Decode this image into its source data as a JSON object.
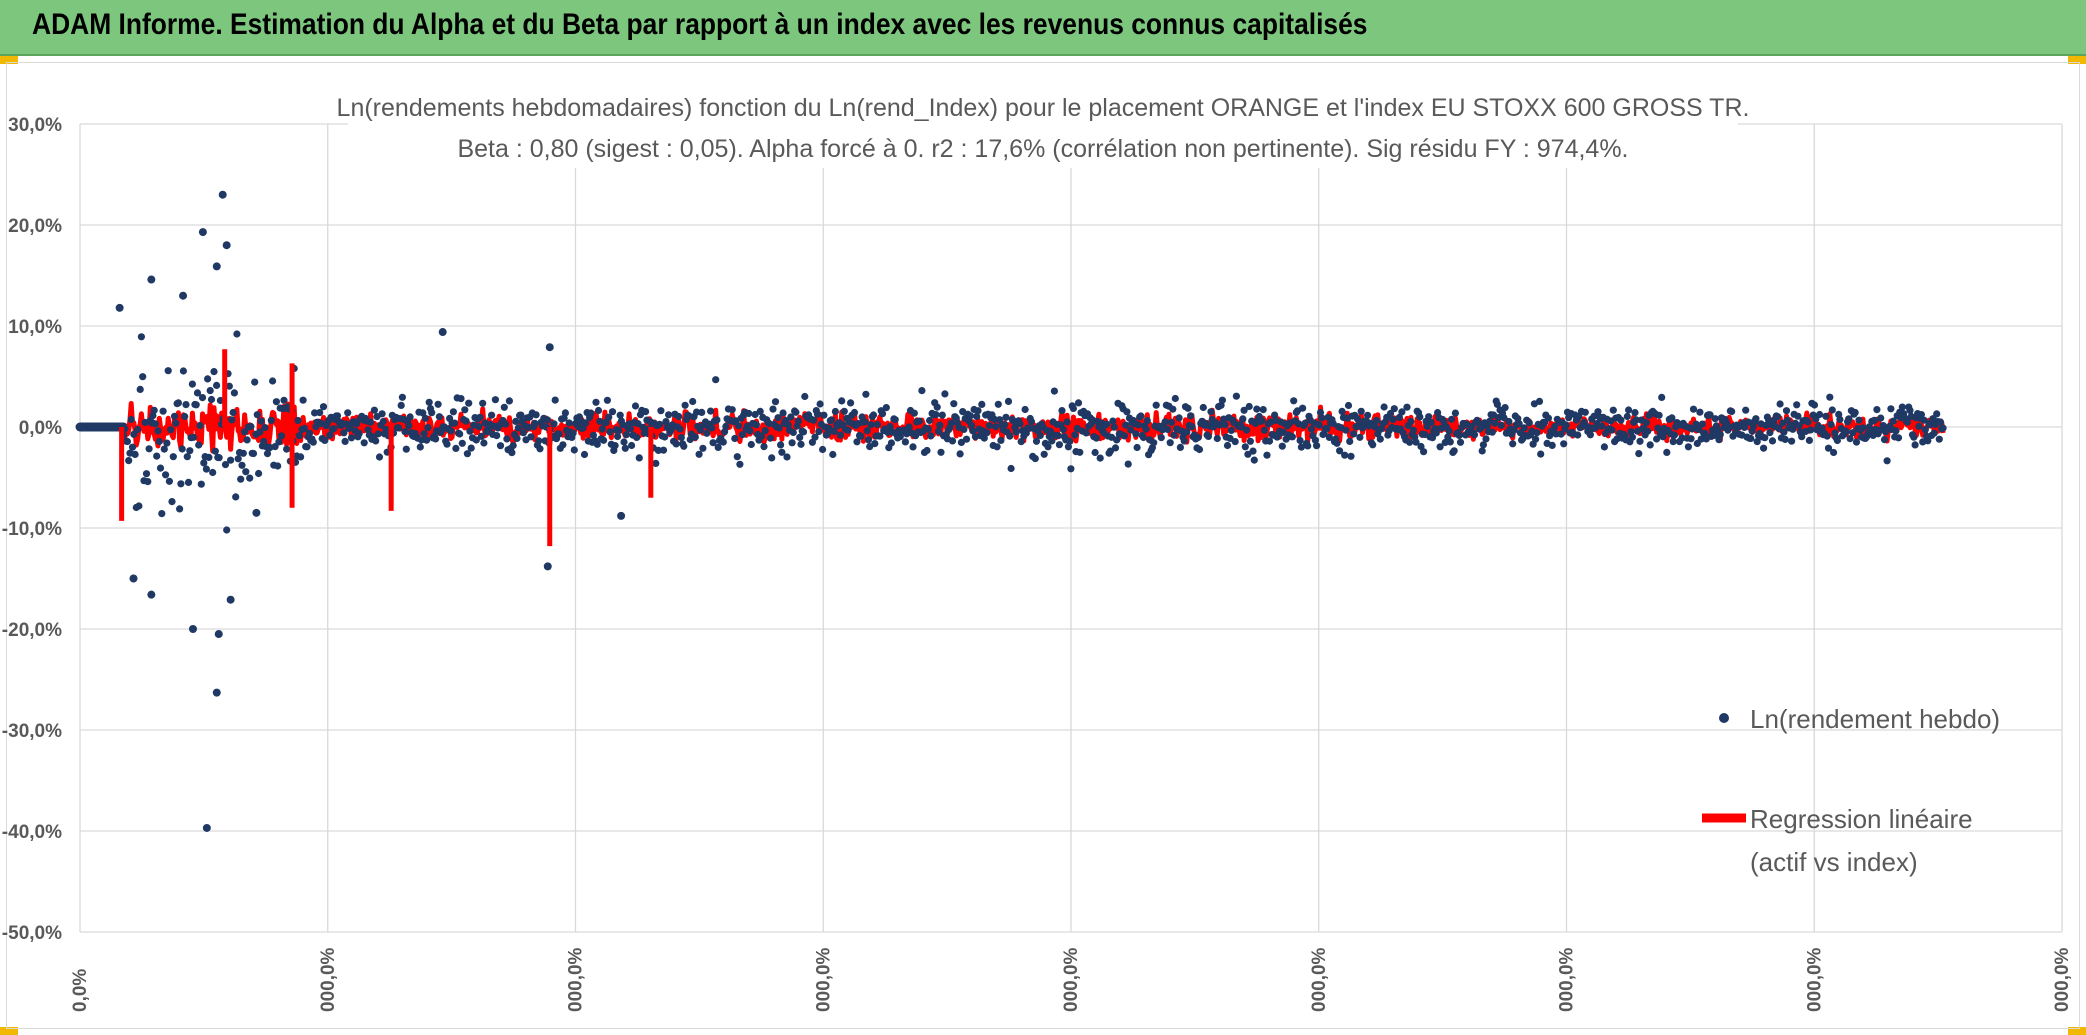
{
  "header": {
    "title": "ADAM Informe. Estimation du Alpha et du Beta par rapport à un index avec les revenus connus capitalisés"
  },
  "colors": {
    "banner": "#7dc67d",
    "points": "#1f3864",
    "regression": "#ff0000",
    "grid": "#d9d9d9",
    "text": "#595959"
  },
  "chart_data": {
    "type": "scatter",
    "title_line1": "Ln(rendements hebdomadaires) fonction du Ln(rend_Index) pour le placement ORANGE et l'index EU STOXX 600 GROSS TR.",
    "title_line2": "Beta : 0,80 (sigest : 0,05). Alpha forcé à 0. r2 : 17,6% (corrélation non pertinente). Sig résidu FY : 974,4%.",
    "xlabel": "",
    "ylabel": "",
    "ylim": [
      -50,
      30
    ],
    "y_ticks": [
      30,
      20,
      10,
      0,
      -10,
      -20,
      -30,
      -40,
      -50
    ],
    "y_tick_labels": [
      "30,0%",
      "20,0%",
      "10,0%",
      "0,0%",
      "-10,0%",
      "-20,0%",
      "-30,0%",
      "-40,0%",
      "-50,0%"
    ],
    "x_tick_labels": [
      "0,0%",
      "000,0%",
      "000,0%",
      "000,0%",
      "000,0%",
      "000,0%",
      "000,0%",
      "000,0%",
      "000,0%"
    ],
    "grid": true,
    "legend_position": "right",
    "series": [
      {
        "name": "Ln(rendement hebdo)",
        "kind": "points",
        "notable_points": [
          {
            "x_frac": 0.072,
            "y": 23.0
          },
          {
            "x_frac": 0.062,
            "y": 19.3
          },
          {
            "x_frac": 0.074,
            "y": 18.0
          },
          {
            "x_frac": 0.069,
            "y": 15.9
          },
          {
            "x_frac": 0.036,
            "y": 14.6
          },
          {
            "x_frac": 0.052,
            "y": 13.0
          },
          {
            "x_frac": 0.02,
            "y": 11.8
          },
          {
            "x_frac": 0.183,
            "y": 9.4
          },
          {
            "x_frac": 0.237,
            "y": 7.9
          },
          {
            "x_frac": 0.057,
            "y": -20.0
          },
          {
            "x_frac": 0.07,
            "y": -20.5
          },
          {
            "x_frac": 0.069,
            "y": -26.3
          },
          {
            "x_frac": 0.064,
            "y": -39.7
          },
          {
            "x_frac": 0.036,
            "y": -16.6
          },
          {
            "x_frac": 0.076,
            "y": -17.1
          },
          {
            "x_frac": 0.027,
            "y": -15.0
          },
          {
            "x_frac": 0.089,
            "y": -8.5
          },
          {
            "x_frac": 0.236,
            "y": -13.8
          },
          {
            "x_frac": 0.273,
            "y": -8.8
          }
        ]
      },
      {
        "name": "Regression linéaire",
        "name_line2": "(actif vs index)",
        "kind": "line",
        "notable_points": [
          {
            "x_frac": 0.237,
            "y": -11.8
          },
          {
            "x_frac": 0.021,
            "y": -9.3
          },
          {
            "x_frac": 0.157,
            "y": -8.3
          },
          {
            "x_frac": 0.107,
            "y": -8.0
          },
          {
            "x_frac": 0.288,
            "y": -7.0
          },
          {
            "x_frac": 0.073,
            "y": 7.7
          },
          {
            "x_frac": 0.107,
            "y": 6.3
          }
        ]
      }
    ]
  }
}
